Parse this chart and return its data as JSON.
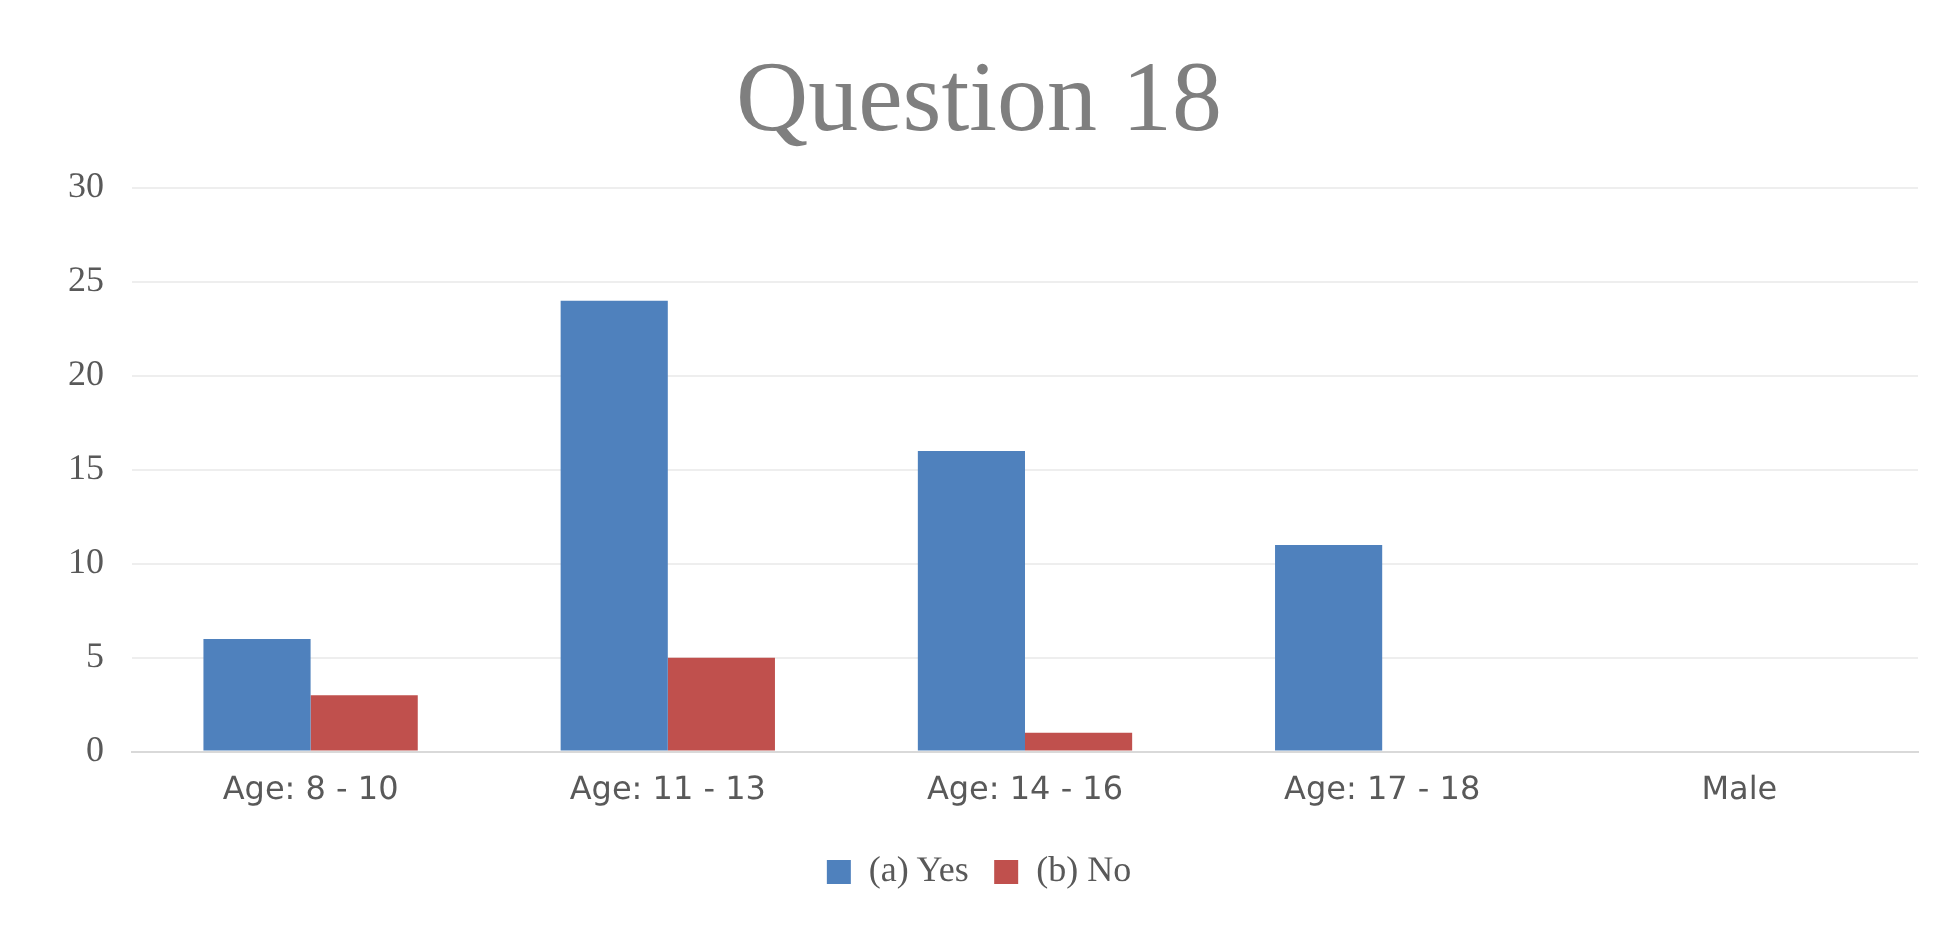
{
  "chart_data": {
    "type": "bar",
    "title": "Question 18",
    "categories": [
      "Age: 8 - 10",
      "Age: 11 - 13",
      "Age: 14 - 16",
      "Age: 17 - 18",
      "Male"
    ],
    "series": [
      {
        "name": "(a) Yes",
        "color": "#4f81bd",
        "values": [
          6,
          24,
          16,
          11,
          0
        ]
      },
      {
        "name": "(b) No",
        "color": "#c0504d",
        "values": [
          3,
          5,
          1,
          0,
          0
        ]
      }
    ],
    "ylim": [
      0,
      30
    ],
    "yticks": [
      0,
      5,
      10,
      15,
      20,
      25,
      30
    ],
    "grid": "y",
    "legend": "bottom"
  }
}
